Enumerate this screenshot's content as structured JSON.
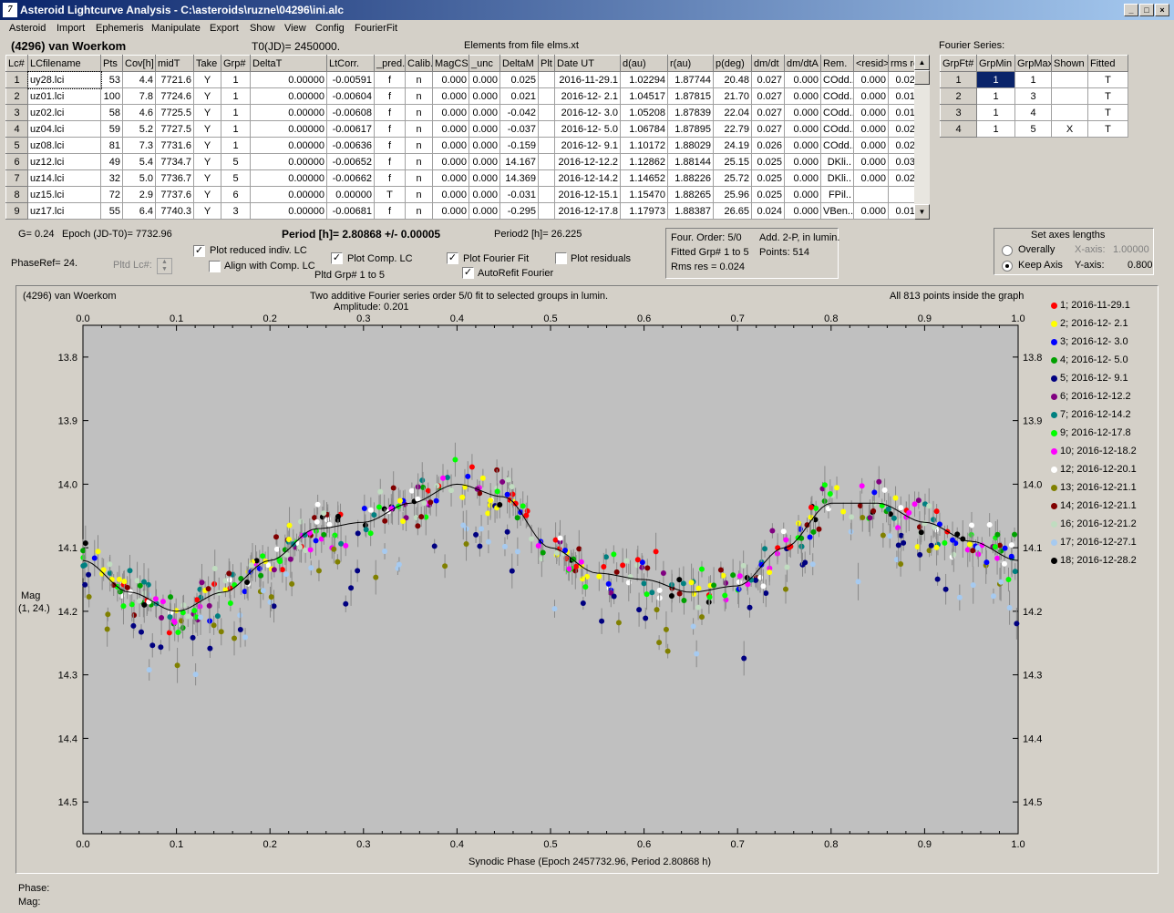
{
  "window": {
    "title": "Asteroid Lightcurve Analysis - C:\\asteroids\\ruzne\\04296\\ini.alc",
    "icon_glyph": "7"
  },
  "menu": [
    "Asteroid",
    "Import",
    "Ephemeris",
    "Manipulate",
    "Export",
    "Show",
    "View",
    "Config",
    "FourierFit"
  ],
  "header": {
    "asteroid": "(4296) van Woerkom",
    "t0": "T0(JD)= 2450000.",
    "elements": "Elements from file elms.xt"
  },
  "lc_table": {
    "columns": [
      "Lc#",
      "LCfilename",
      "Pts",
      "Cov[h]",
      "midT",
      "Take",
      "Grp#",
      "DeltaT",
      "LtCorr.",
      "_pred.",
      "Calib.",
      "MagCS",
      "_unc",
      "DeltaM",
      "Plt",
      "Date UT",
      "d(au)",
      "r(au)",
      "p(deg)",
      "dm/dt",
      "dm/dtA",
      "Rem.",
      "<resid>",
      "rms res"
    ],
    "rows": [
      [
        "1",
        "uy28.lci",
        "53",
        "4.4",
        "7721.6",
        "Y",
        "1",
        "0.00000",
        "-0.00591",
        "f",
        "n",
        "0.000",
        "0.000",
        "0.025",
        "",
        "2016-11-29.1",
        "1.02294",
        "1.87744",
        "20.48",
        "0.027",
        "0.000",
        "COdd..",
        "0.000",
        "0.020"
      ],
      [
        "2",
        "uz01.lci",
        "100",
        "7.8",
        "7724.6",
        "Y",
        "1",
        "0.00000",
        "-0.00604",
        "f",
        "n",
        "0.000",
        "0.000",
        "0.021",
        "",
        "2016-12- 2.1",
        "1.04517",
        "1.87815",
        "21.70",
        "0.027",
        "0.000",
        "COdd..",
        "0.000",
        "0.014"
      ],
      [
        "3",
        "uz02.lci",
        "58",
        "4.6",
        "7725.5",
        "Y",
        "1",
        "0.00000",
        "-0.00608",
        "f",
        "n",
        "0.000",
        "0.000",
        "-0.042",
        "",
        "2016-12- 3.0",
        "1.05208",
        "1.87839",
        "22.04",
        "0.027",
        "0.000",
        "COdd..",
        "0.000",
        "0.017"
      ],
      [
        "4",
        "uz04.lci",
        "59",
        "5.2",
        "7727.5",
        "Y",
        "1",
        "0.00000",
        "-0.00617",
        "f",
        "n",
        "0.000",
        "0.000",
        "-0.037",
        "",
        "2016-12- 5.0",
        "1.06784",
        "1.87895",
        "22.79",
        "0.027",
        "0.000",
        "COdd..",
        "0.000",
        "0.024"
      ],
      [
        "5",
        "uz08.lci",
        "81",
        "7.3",
        "7731.6",
        "Y",
        "1",
        "0.00000",
        "-0.00636",
        "f",
        "n",
        "0.000",
        "0.000",
        "-0.159",
        "",
        "2016-12- 9.1",
        "1.10172",
        "1.88029",
        "24.19",
        "0.026",
        "0.000",
        "COdd..",
        "0.000",
        "0.022"
      ],
      [
        "6",
        "uz12.lci",
        "49",
        "5.4",
        "7734.7",
        "Y",
        "5",
        "0.00000",
        "-0.00652",
        "f",
        "n",
        "0.000",
        "0.000",
        "14.167",
        "",
        "2016-12-12.2",
        "1.12862",
        "1.88144",
        "25.15",
        "0.025",
        "0.000",
        "DKli..",
        "0.000",
        "0.036"
      ],
      [
        "7",
        "uz14.lci",
        "32",
        "5.0",
        "7736.7",
        "Y",
        "5",
        "0.00000",
        "-0.00662",
        "f",
        "n",
        "0.000",
        "0.000",
        "14.369",
        "",
        "2016-12-14.2",
        "1.14652",
        "1.88226",
        "25.72",
        "0.025",
        "0.000",
        "DKli..",
        "0.000",
        "0.027"
      ],
      [
        "8",
        "uz15.lci",
        "72",
        "2.9",
        "7737.6",
        "Y",
        "6",
        "0.00000",
        "0.00000",
        "T",
        "n",
        "0.000",
        "0.000",
        "-0.031",
        "",
        "2016-12-15.1",
        "1.15470",
        "1.88265",
        "25.96",
        "0.025",
        "0.000",
        "FPil..",
        "",
        ""
      ],
      [
        "9",
        "uz17.lci",
        "55",
        "6.4",
        "7740.3",
        "Y",
        "3",
        "0.00000",
        "-0.00681",
        "f",
        "n",
        "0.000",
        "0.000",
        "-0.295",
        "",
        "2016-12-17.8",
        "1.17973",
        "1.88387",
        "26.65",
        "0.024",
        "0.000",
        "VBen..",
        "0.000",
        "0.017"
      ]
    ]
  },
  "fourier_series": {
    "label": "Fourier Series:",
    "columns": [
      "GrpFt#",
      "GrpMin",
      "GrpMax",
      "Shown",
      "Fitted"
    ],
    "rows": [
      [
        "1",
        "1",
        "1",
        "",
        "T"
      ],
      [
        "2",
        "1",
        "3",
        "",
        "T"
      ],
      [
        "3",
        "1",
        "4",
        "",
        "T"
      ],
      [
        "4",
        "1",
        "5",
        "X",
        "T"
      ]
    ]
  },
  "controls": {
    "g": "G= 0.24",
    "epoch": "Epoch (JD-T0)= 7732.96",
    "period": "Period [h]= 2.80868 +/- 0.00005",
    "period2": "Period2 [h]= 26.225",
    "phaseref": "PhaseRef= 24.",
    "pltd_lc": "Pltd Lc#:",
    "plot_reduced": "Plot reduced indiv. LC",
    "align_comp": "Align with Comp. LC",
    "plot_comp": "Plot Comp. LC",
    "pltd_grp": "Pltd Grp#  1   to   5",
    "plot_fourier": "Plot Fourier Fit",
    "autorefit": "AutoRefit Fourier",
    "plot_residuals": "Plot residuals"
  },
  "fit_info": {
    "order": "Four. Order:  5/0",
    "add": "Add. 2-P, in lumin.",
    "fitted": "Fitted Grp# 1 to 5",
    "points": "Points: 514",
    "rms": "Rms res     = 0.024"
  },
  "axes_box": {
    "title": "Set axes lengths",
    "overally": "Overally",
    "keep_axis": "Keep Axis",
    "x_label": "X-axis:",
    "x_value": "1.00000",
    "y_label": "Y-axis:",
    "y_value": "0.800"
  },
  "plot": {
    "name": "(4296) van Woerkom",
    "title": "Two additive Fourier series order 5/0 fit to selected groups in lumin.",
    "amplitude": "Amplitude: 0.201",
    "points_note": "All 813 points inside the graph",
    "ylabel1": "Mag",
    "ylabel2": "(1, 24.)",
    "xlabel": "Synodic Phase (Epoch 2457732.96, Period 2.80868 h)"
  },
  "status": {
    "phase": "Phase:",
    "mag": "Mag:"
  },
  "chart_data": {
    "type": "scatter",
    "title": "Two additive Fourier series order 5/0 fit to selected groups in lumin.",
    "xlabel": "Synodic Phase (Epoch 2457732.96, Period 2.80868 h)",
    "ylabel": "Mag",
    "xlim": [
      0,
      1
    ],
    "ylim": [
      14.55,
      13.75
    ],
    "y_inverted": true,
    "x_ticks": [
      "0.0",
      "0.1",
      "0.2",
      "0.3",
      "0.4",
      "0.5",
      "0.6",
      "0.7",
      "0.8",
      "0.9",
      "1.0"
    ],
    "y_ticks": [
      "13.8",
      "13.9",
      "14.0",
      "14.1",
      "14.2",
      "14.3",
      "14.4",
      "14.5"
    ],
    "legend_position": "right",
    "series": [
      {
        "name": "1; 2016-11-29.1",
        "color": "#ff0000"
      },
      {
        "name": "2; 2016-12- 2.1",
        "color": "#ffff00"
      },
      {
        "name": "3; 2016-12- 3.0",
        "color": "#0000ff"
      },
      {
        "name": "4; 2016-12- 5.0",
        "color": "#00a000"
      },
      {
        "name": "5; 2016-12- 9.1",
        "color": "#000080"
      },
      {
        "name": "6; 2016-12-12.2",
        "color": "#800080"
      },
      {
        "name": "7; 2016-12-14.2",
        "color": "#008080"
      },
      {
        "name": "9; 2016-12-17.8",
        "color": "#00ff00"
      },
      {
        "name": "10; 2016-12-18.2",
        "color": "#ff00ff"
      },
      {
        "name": "12; 2016-12-20.1",
        "color": "#ffffff"
      },
      {
        "name": "13; 2016-12-21.1",
        "color": "#808000"
      },
      {
        "name": "14; 2016-12-21.1",
        "color": "#800000"
      },
      {
        "name": "16; 2016-12-21.2",
        "color": "#c0dcc0"
      },
      {
        "name": "17; 2016-12-27.1",
        "color": "#a6caf0"
      },
      {
        "name": "18; 2016-12-28.2",
        "color": "#000000"
      }
    ],
    "fourier_fit": {
      "x": [
        0.0,
        0.05,
        0.1,
        0.15,
        0.2,
        0.25,
        0.3,
        0.35,
        0.4,
        0.45,
        0.5,
        0.55,
        0.6,
        0.65,
        0.7,
        0.75,
        0.8,
        0.85,
        0.9,
        0.95,
        1.0
      ],
      "y": [
        14.12,
        14.17,
        14.2,
        14.17,
        14.12,
        14.07,
        14.06,
        14.03,
        14.0,
        14.02,
        14.1,
        14.14,
        14.15,
        14.17,
        14.16,
        14.1,
        14.03,
        14.03,
        14.06,
        14.09,
        14.12
      ]
    }
  }
}
